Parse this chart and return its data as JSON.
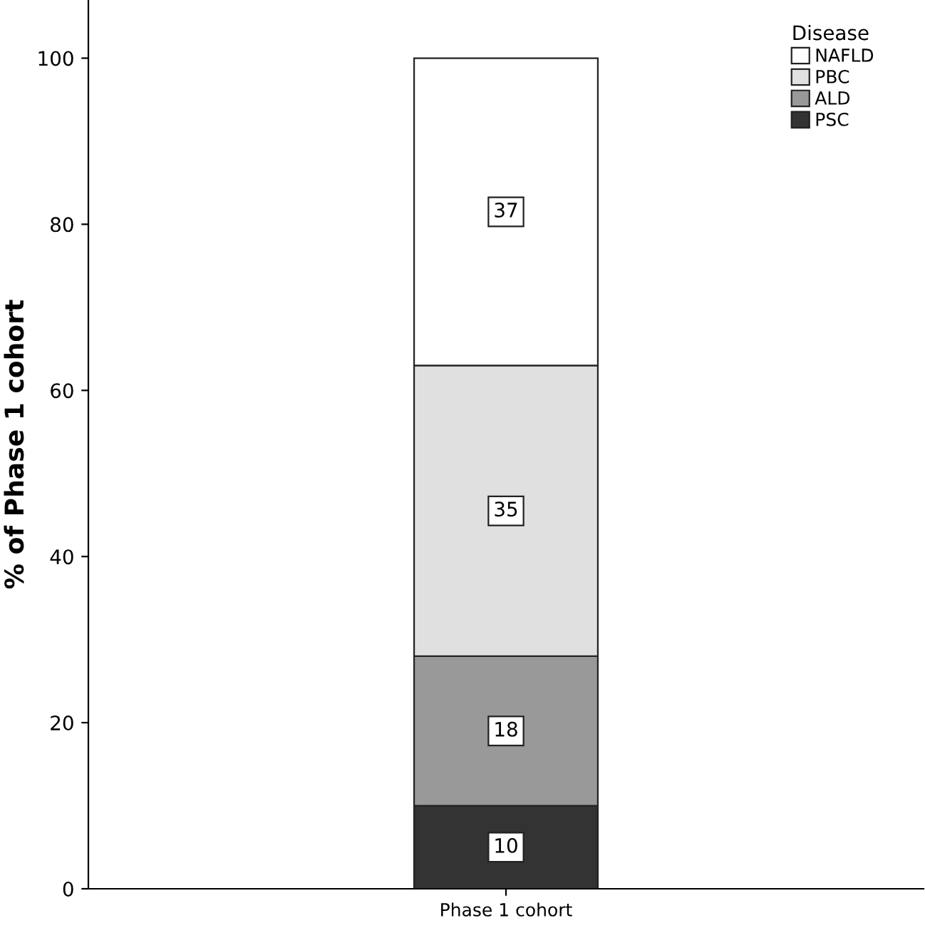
{
  "chart_data": {
    "type": "bar",
    "stacked": true,
    "ylabel": "% of Phase 1 cohort",
    "categories": [
      "Phase 1 cohort"
    ],
    "series": [
      {
        "name": "PSC",
        "color": "#333333",
        "values": [
          10
        ]
      },
      {
        "name": "ALD",
        "color": "#999999",
        "values": [
          18
        ]
      },
      {
        "name": "PBC",
        "color": "#e0e0e0",
        "values": [
          35
        ]
      },
      {
        "name": "NAFLD",
        "color": "#ffffff",
        "values": [
          37
        ]
      }
    ],
    "legend_title": "Disease",
    "legend": "top right",
    "data_labels": true,
    "grid": false,
    "ylim": [
      0,
      107
    ],
    "yticks": [
      0,
      20,
      40,
      60,
      80,
      100
    ]
  }
}
